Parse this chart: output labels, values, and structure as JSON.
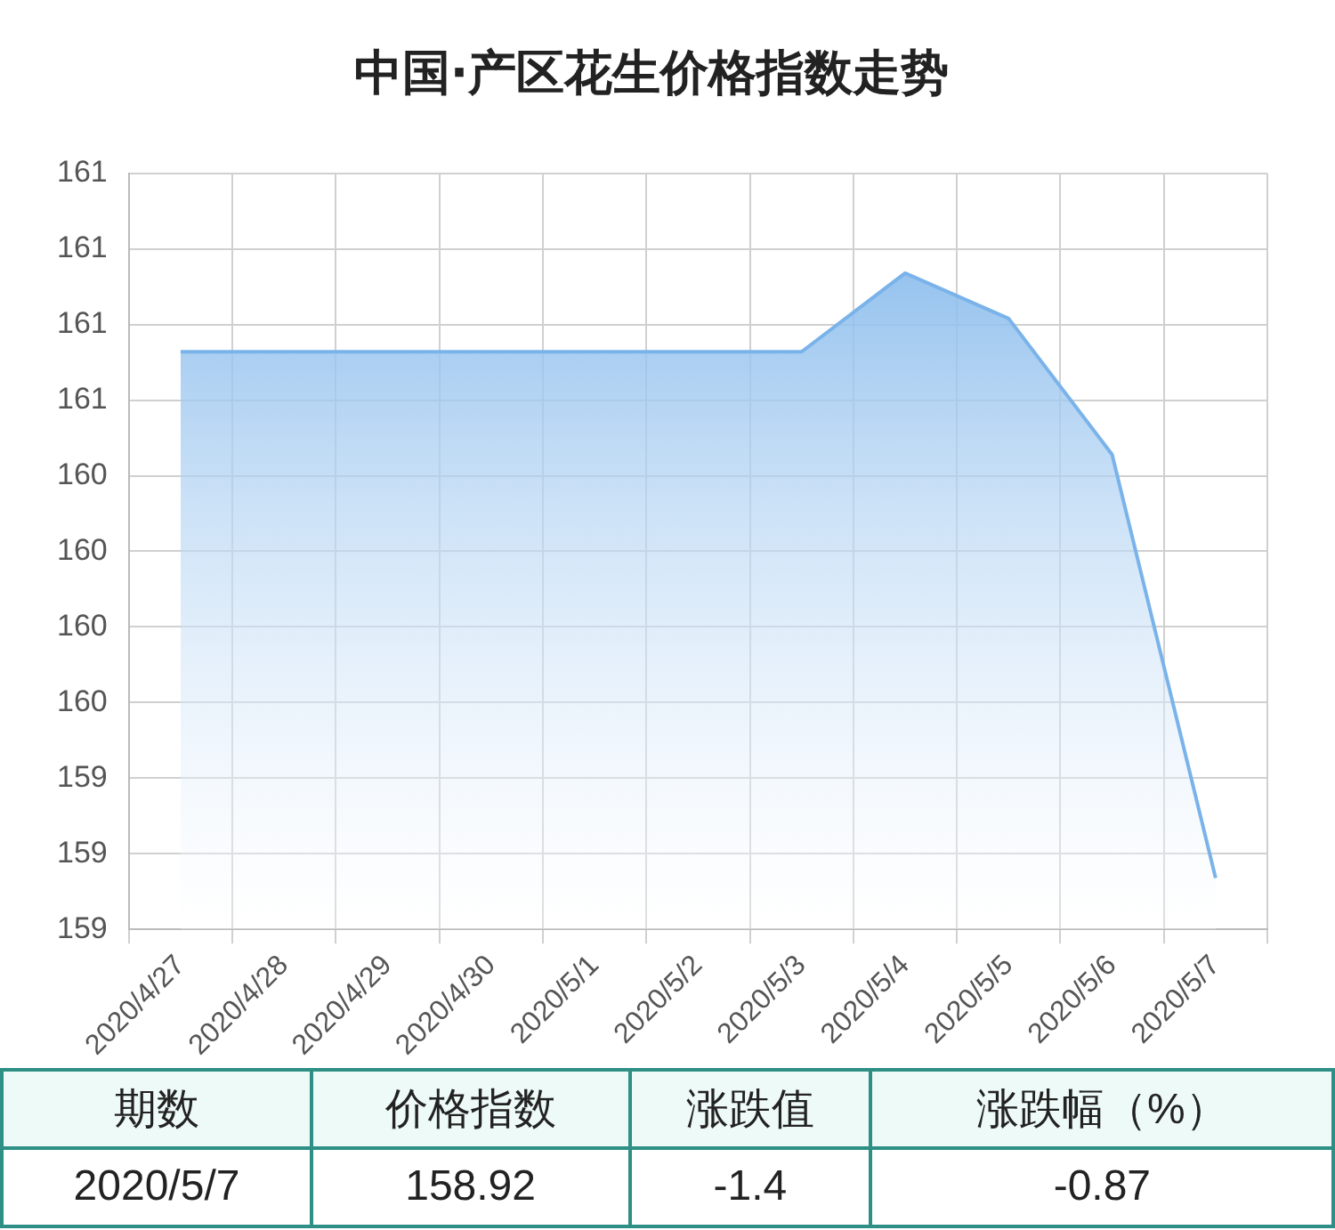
{
  "chart_data": {
    "type": "area",
    "title": "中国·产区花生价格指数走势",
    "categories": [
      "2020/4/27",
      "2020/4/28",
      "2020/4/29",
      "2020/4/30",
      "2020/5/1",
      "2020/5/2",
      "2020/5/3",
      "2020/5/4",
      "2020/5/5",
      "2020/5/6",
      "2020/5/7"
    ],
    "series": [
      {
        "color": "#7ab3ea",
        "values": [
          160.66,
          160.66,
          160.66,
          160.66,
          160.66,
          160.66,
          160.66,
          160.92,
          160.77,
          160.32,
          158.92
        ]
      }
    ],
    "ylim": [
      158.75,
      161.25
    ],
    "yticks": [
      {
        "value": 158.75,
        "label": "159"
      },
      {
        "value": 159,
        "label": "159"
      },
      {
        "value": 159.25,
        "label": "159"
      },
      {
        "value": 159.5,
        "label": "160"
      },
      {
        "value": 159.75,
        "label": "160"
      },
      {
        "value": 160,
        "label": "160"
      },
      {
        "value": 160.25,
        "label": "160"
      },
      {
        "value": 160.5,
        "label": "161"
      },
      {
        "value": 160.75,
        "label": "161"
      },
      {
        "value": 161,
        "label": "161"
      },
      {
        "value": 161.25,
        "label": "161"
      }
    ],
    "grid": true,
    "legend": false,
    "marker": "none",
    "annotations": [
      "期数",
      "价格指数",
      "涨跌值",
      "涨跌幅（%）",
      "2020/5/7",
      "158.92",
      "-1.4",
      "-0.87"
    ]
  }
}
